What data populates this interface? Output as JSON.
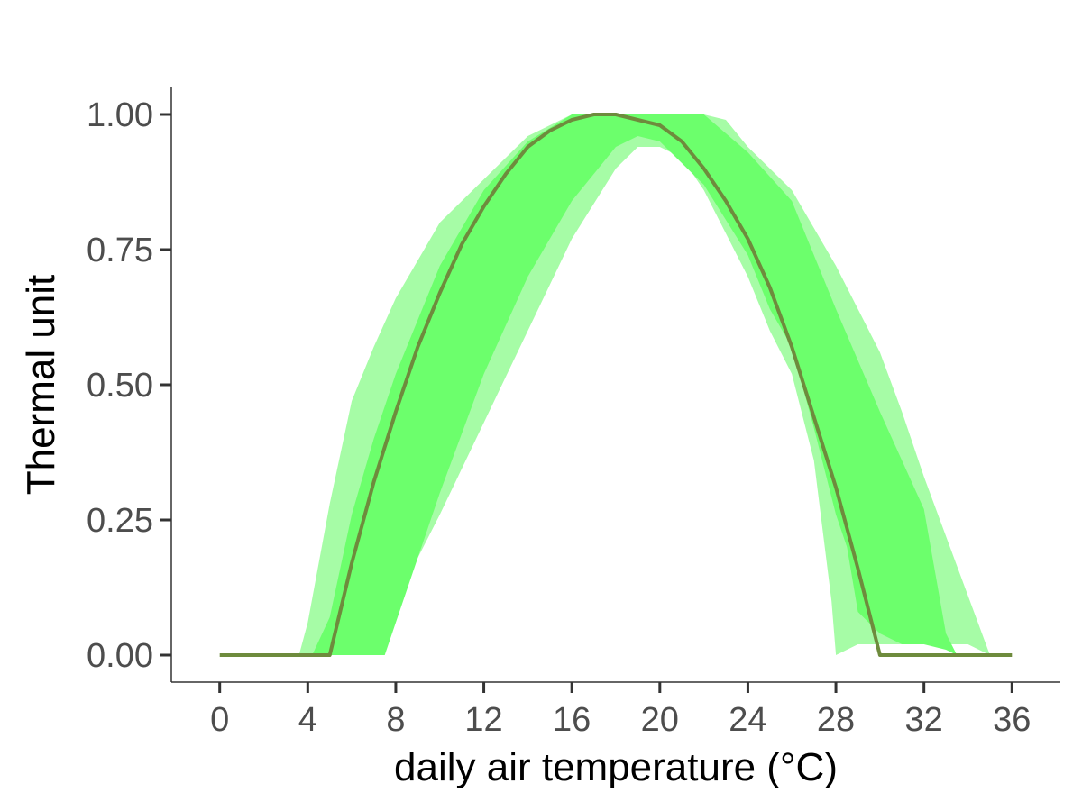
{
  "chart_data": {
    "type": "area",
    "xlabel": "daily air temperature (°C)",
    "ylabel": "Thermal unit",
    "xlim": [
      -2.2,
      38.2
    ],
    "ylim": [
      -0.05,
      1.05
    ],
    "x_ticks": [
      0,
      4,
      8,
      12,
      16,
      20,
      24,
      28,
      32,
      36
    ],
    "y_ticks": [
      0,
      0.25,
      0.5,
      0.75,
      1
    ],
    "x_tick_labels": [
      "0",
      "4",
      "8",
      "12",
      "16",
      "20",
      "24",
      "28",
      "32",
      "36"
    ],
    "y_tick_labels": [
      "0.00",
      "0.25",
      "0.50",
      "0.75",
      "1.00"
    ],
    "grid": false,
    "legend": "none",
    "colors": {
      "outer_band": "#a6fca6",
      "inner_band": "#6cff6c",
      "line": "#6e8b3d",
      "axis": "#333333",
      "tick_label": "#4d4d4d"
    },
    "series": [
      {
        "kind": "band",
        "color_key": "outer_band",
        "upper": [
          [
            3.6,
            0
          ],
          [
            4,
            0.06
          ],
          [
            5,
            0.28
          ],
          [
            6,
            0.47
          ],
          [
            7,
            0.57
          ],
          [
            8,
            0.66
          ],
          [
            10,
            0.8
          ],
          [
            12,
            0.88
          ],
          [
            14,
            0.96
          ],
          [
            16,
            1.0
          ],
          [
            18,
            1.0
          ],
          [
            20,
            1.0
          ],
          [
            22,
            1.0
          ],
          [
            23,
            0.99
          ],
          [
            24,
            0.94
          ],
          [
            26,
            0.86
          ],
          [
            28,
            0.72
          ],
          [
            30,
            0.56
          ],
          [
            31,
            0.45
          ],
          [
            32,
            0.33
          ],
          [
            33,
            0.22
          ],
          [
            34,
            0.11
          ],
          [
            35,
            0
          ]
        ],
        "lower": [
          [
            35,
            0
          ],
          [
            34,
            0.02
          ],
          [
            33,
            0.02
          ],
          [
            32,
            0.02
          ],
          [
            31,
            0.02
          ],
          [
            30,
            0.02
          ],
          [
            29,
            0.02
          ],
          [
            28,
            0
          ],
          [
            27.8,
            0.1
          ],
          [
            27,
            0.36
          ],
          [
            26,
            0.52
          ],
          [
            25,
            0.6
          ],
          [
            24,
            0.7
          ],
          [
            22,
            0.86
          ],
          [
            21,
            0.92
          ],
          [
            20,
            0.94
          ],
          [
            19,
            0.94
          ],
          [
            18,
            0.9
          ],
          [
            16,
            0.77
          ],
          [
            14,
            0.6
          ],
          [
            12,
            0.43
          ],
          [
            10,
            0.26
          ],
          [
            8,
            0.1
          ],
          [
            7,
            0
          ],
          [
            3.6,
            0
          ]
        ]
      },
      {
        "kind": "band",
        "color_key": "inner_band",
        "upper": [
          [
            4.2,
            0
          ],
          [
            5,
            0.07
          ],
          [
            6,
            0.26
          ],
          [
            7,
            0.4
          ],
          [
            8,
            0.52
          ],
          [
            10,
            0.72
          ],
          [
            12,
            0.86
          ],
          [
            14,
            0.95
          ],
          [
            16,
            1.0
          ],
          [
            18,
            1.0
          ],
          [
            20,
            1.0
          ],
          [
            22,
            1.0
          ],
          [
            24,
            0.93
          ],
          [
            26,
            0.84
          ],
          [
            28,
            0.64
          ],
          [
            30,
            0.45
          ],
          [
            32,
            0.27
          ],
          [
            33,
            0.04
          ],
          [
            33.5,
            0
          ]
        ],
        "lower": [
          [
            33.5,
            0
          ],
          [
            33,
            0.01
          ],
          [
            32,
            0.02
          ],
          [
            31,
            0.02
          ],
          [
            30,
            0.04
          ],
          [
            29,
            0.08
          ],
          [
            28.5,
            0.2
          ],
          [
            28,
            0.26
          ],
          [
            27,
            0.42
          ],
          [
            26,
            0.57
          ],
          [
            25,
            0.64
          ],
          [
            24,
            0.74
          ],
          [
            22,
            0.87
          ],
          [
            20,
            0.95
          ],
          [
            19,
            0.96
          ],
          [
            18,
            0.94
          ],
          [
            16,
            0.84
          ],
          [
            14,
            0.7
          ],
          [
            12,
            0.52
          ],
          [
            10,
            0.3
          ],
          [
            8,
            0.06
          ],
          [
            7.5,
            0
          ],
          [
            4.2,
            0
          ]
        ]
      },
      {
        "kind": "line",
        "color_key": "line",
        "points": [
          [
            0,
            0
          ],
          [
            5,
            0
          ],
          [
            6,
            0.17
          ],
          [
            7,
            0.32
          ],
          [
            8,
            0.45
          ],
          [
            9,
            0.57
          ],
          [
            10,
            0.67
          ],
          [
            11,
            0.76
          ],
          [
            12,
            0.83
          ],
          [
            13,
            0.89
          ],
          [
            14,
            0.94
          ],
          [
            15,
            0.97
          ],
          [
            16,
            0.99
          ],
          [
            17,
            1.0
          ],
          [
            18,
            1.0
          ],
          [
            19,
            0.99
          ],
          [
            20,
            0.98
          ],
          [
            21,
            0.95
          ],
          [
            22,
            0.9
          ],
          [
            23,
            0.84
          ],
          [
            24,
            0.77
          ],
          [
            25,
            0.68
          ],
          [
            26,
            0.57
          ],
          [
            27,
            0.44
          ],
          [
            28,
            0.31
          ],
          [
            29,
            0.16
          ],
          [
            30,
            0
          ],
          [
            36,
            0
          ]
        ]
      }
    ]
  }
}
